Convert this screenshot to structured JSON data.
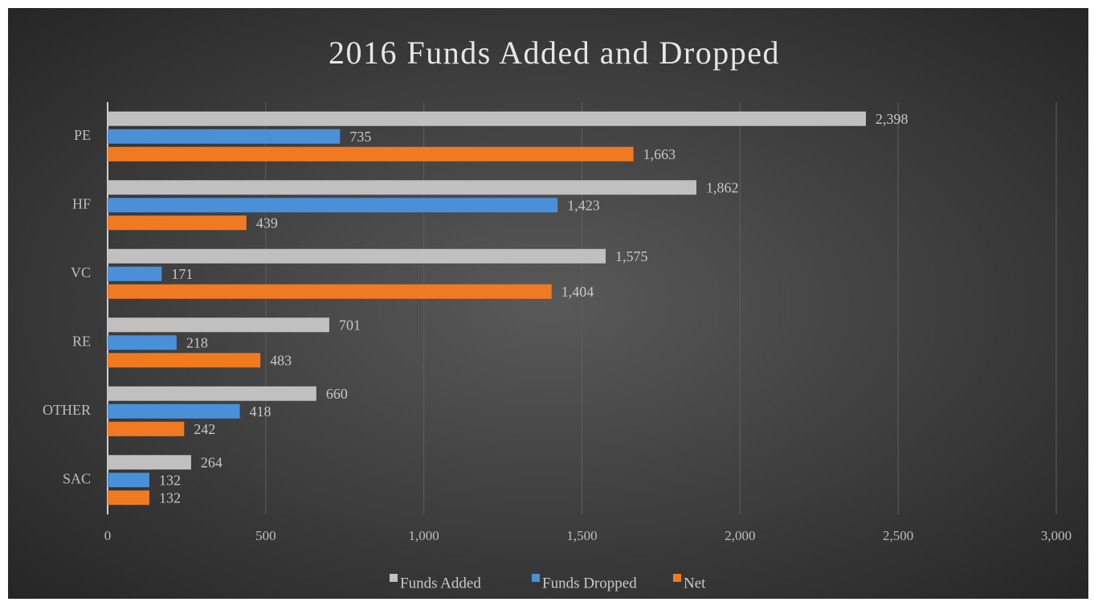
{
  "chart_data": {
    "type": "hbar",
    "title": "2016 Funds Added and Dropped",
    "categories": [
      "PE",
      "HF",
      "VC",
      "RE",
      "OTHER",
      "SAC"
    ],
    "series": [
      {
        "name": "Funds Added",
        "color": "#c0c0c0",
        "values": [
          2398,
          1862,
          1575,
          701,
          660,
          264
        ],
        "value_labels": [
          "2,398",
          "1,862",
          "1,575",
          "701",
          "660",
          "264"
        ]
      },
      {
        "name": "Funds Dropped",
        "color": "#4a90d9",
        "values": [
          735,
          1423,
          171,
          218,
          418,
          132
        ],
        "value_labels": [
          "735",
          "1,423",
          "171",
          "218",
          "418",
          "132"
        ]
      },
      {
        "name": "Net",
        "color": "#f07a22",
        "values": [
          1663,
          439,
          1404,
          483,
          242,
          132
        ],
        "value_labels": [
          "1,663",
          "439",
          "1,404",
          "483",
          "242",
          "132"
        ]
      }
    ],
    "xlim": [
      0,
      3000
    ],
    "xticks": [
      0,
      500,
      {
        "value": 1000,
        "label": "1,000"
      },
      {
        "value": 1500,
        "label": "1,500"
      },
      {
        "value": 2000,
        "label": "2,000"
      },
      {
        "value": 2500,
        "label": "2,500"
      },
      {
        "value": 3000,
        "label": "3,000"
      }
    ],
    "grid": true,
    "legend": "bottom"
  }
}
